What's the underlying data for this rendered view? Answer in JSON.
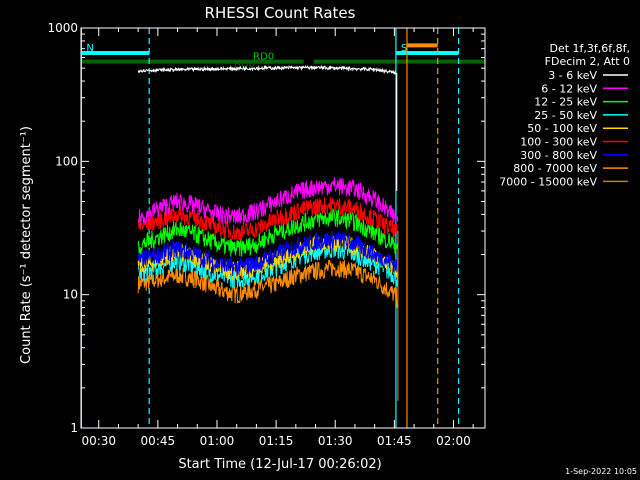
{
  "chart_data": {
    "type": "line",
    "title": "RHESSI Count Rates",
    "xlabel": "Start Time (12-Jul-17 00:26:02)",
    "ylabel": "Count Rate (s⁻¹ detector segment⁻¹)",
    "yscale": "log",
    "ylim": [
      1,
      1000
    ],
    "xlim_minutes": [
      25.5,
      128.0
    ],
    "x_ticks": [
      {
        "minutes": 30,
        "label": "00:30"
      },
      {
        "minutes": 45,
        "label": "00:45"
      },
      {
        "minutes": 60,
        "label": "01:00"
      },
      {
        "minutes": 75,
        "label": "01:15"
      },
      {
        "minutes": 90,
        "label": "01:30"
      },
      {
        "minutes": 105,
        "label": "01:45"
      },
      {
        "minutes": 120,
        "label": "02:00"
      }
    ],
    "y_ticks": [
      {
        "value": 1,
        "label": "1"
      },
      {
        "value": 10,
        "label": "10"
      },
      {
        "value": 100,
        "label": "100"
      },
      {
        "value": 1000,
        "label": "1000"
      }
    ],
    "legend_header": [
      "Det 1f,3f,6f,8f,",
      "FDecim 2, Att 0"
    ],
    "legend_placement": "right",
    "series": [
      {
        "name": "3 - 6 keV",
        "color": "#ffffff",
        "x": [
          40.0,
          55.0,
          70.0,
          85.0,
          100.0,
          105.5
        ],
        "values": [
          480,
          490,
          500,
          505,
          490,
          460
        ]
      },
      {
        "name": "6 - 12 keV",
        "color": "#ff00ff",
        "x": [
          40.0,
          45.0,
          50.0,
          55.0,
          60.0,
          65.0,
          70.0,
          75.0,
          80.0,
          85.0,
          90.0,
          95.0,
          100.0,
          105.0,
          106.0
        ],
        "values": [
          37,
          44,
          50,
          46,
          40,
          38,
          42,
          50,
          58,
          64,
          66,
          62,
          52,
          38,
          35
        ]
      },
      {
        "name": "12 - 25 keV",
        "color": "#00ff00",
        "x": [
          40.0,
          45.0,
          50.0,
          55.0,
          60.0,
          65.0,
          70.0,
          75.0,
          80.0,
          85.0,
          90.0,
          95.0,
          100.0,
          105.0,
          106.0
        ],
        "values": [
          23,
          27,
          31,
          28,
          24,
          22,
          24,
          29,
          33,
          37,
          38,
          35,
          29,
          24,
          23
        ]
      },
      {
        "name": "25 - 50 keV",
        "color": "#00ffff",
        "x": [
          40.0,
          45.0,
          50.0,
          55.0,
          60.0,
          65.0,
          70.0,
          75.0,
          80.0,
          85.0,
          90.0,
          95.0,
          100.0,
          105.0,
          106.0
        ],
        "values": [
          14,
          16,
          18,
          16,
          14,
          13,
          14,
          16,
          19,
          21,
          22,
          20,
          17,
          14,
          13
        ]
      },
      {
        "name": "50 - 100 keV",
        "color": "#ffd700",
        "x": [
          40.0,
          45.0,
          50.0,
          55.0,
          60.0,
          65.0,
          70.0,
          75.0,
          80.0,
          85.0,
          90.0,
          95.0,
          100.0,
          105.0,
          106.0
        ],
        "values": [
          16,
          18,
          21,
          19,
          16,
          15,
          16,
          18,
          21,
          24,
          25,
          23,
          19,
          16,
          15
        ]
      },
      {
        "name": "100 - 300 keV",
        "color": "#ff0000",
        "x": [
          40.0,
          45.0,
          50.0,
          55.0,
          60.0,
          65.0,
          70.0,
          75.0,
          80.0,
          85.0,
          90.0,
          95.0,
          100.0,
          105.0,
          106.0
        ],
        "values": [
          32,
          36,
          40,
          37,
          32,
          29,
          31,
          37,
          42,
          46,
          47,
          44,
          37,
          30,
          28
        ]
      },
      {
        "name": "300 - 800 keV",
        "color": "#0000ff",
        "x": [
          40.0,
          45.0,
          50.0,
          55.0,
          60.0,
          65.0,
          70.0,
          75.0,
          80.0,
          85.0,
          90.0,
          95.0,
          100.0,
          105.0,
          106.0
        ],
        "values": [
          18,
          20,
          22,
          20,
          17,
          16,
          17,
          20,
          23,
          25,
          26,
          24,
          20,
          17,
          16
        ]
      },
      {
        "name": "800 - 7000 keV",
        "color": "#ff8c00",
        "x": [
          40.0,
          45.0,
          50.0,
          55.0,
          60.0,
          65.0,
          70.0,
          75.0,
          80.0,
          85.0,
          90.0,
          95.0,
          100.0,
          105.0,
          106.0
        ],
        "values": [
          12,
          13,
          14,
          13,
          11,
          10,
          11,
          12,
          14,
          15,
          16,
          15,
          13,
          10,
          9
        ]
      },
      {
        "name": "7000 - 15000 keV",
        "color": "#b8860b",
        "x": [],
        "values": []
      }
    ],
    "vertical_markers": [
      {
        "minutes": 25.6,
        "color": "#00ffff",
        "style": "solid"
      },
      {
        "minutes": 42.8,
        "color": "#00ffff",
        "style": "dashed"
      },
      {
        "minutes": 105.4,
        "color": "#00ffff",
        "style": "solid"
      },
      {
        "minutes": 108.2,
        "color": "#ff8c00",
        "style": "solid"
      },
      {
        "minutes": 116.0,
        "color": "#ff8c00",
        "style": "dashed"
      },
      {
        "minutes": 121.3,
        "color": "#00ffff",
        "style": "dashed"
      }
    ],
    "interval_bars": [
      {
        "label": "N",
        "color": "#00ffff",
        "x_start": 25.6,
        "x_end": 42.8,
        "value": 650
      },
      {
        "label": "RD0",
        "color": "#006400",
        "x_start": 25.6,
        "x_end": 82.0,
        "value": 560
      },
      {
        "label": "",
        "color": "#006400",
        "x_start": 84.5,
        "x_end": 128.0,
        "value": 560
      },
      {
        "label": "S",
        "color": "#00ffff",
        "x_start": 105.4,
        "x_end": 121.3,
        "value": 650
      },
      {
        "label": "",
        "color": "#ff8c00",
        "x_start": 108.2,
        "x_end": 116.0,
        "value": 740
      }
    ],
    "overlay_labels": [
      "RD0"
    ]
  },
  "footer": {
    "timestamp": "1-Sep-2022 10:05"
  }
}
